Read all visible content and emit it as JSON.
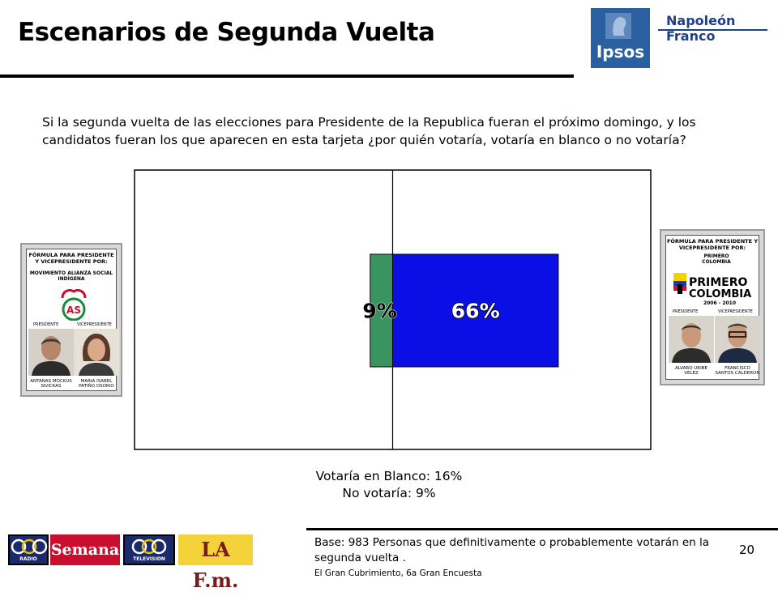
{
  "header": {
    "title": "Escenarios de Segunda Vuelta",
    "logo_ipsos": "Ipsos",
    "logo_company": "Napoleón Franco"
  },
  "question": "Si la segunda vuelta de las elecciones para Presidente de la Republica fueran el próximo domingo, y los candidatos fueran los que aparecen en esta tarjeta ¿por quién votaría, votaría en blanco o no votaría?",
  "chart_data": {
    "type": "bar",
    "orientation": "horizontal-diverging",
    "series": [
      {
        "label": "9%",
        "value": 9,
        "color": "#3a9460",
        "side": "left"
      },
      {
        "label": "66%",
        "value": 66,
        "color": "#0a0fe6",
        "side": "right"
      }
    ],
    "xlim": [
      -45,
      45
    ]
  },
  "ballot_left": {
    "header": "FÓRMULA PARA PRESIDENTE Y VICEPRESIDENTE POR:",
    "party": "MOVIMIENTO ALIANZA SOCIAL INDÍGENA",
    "role_president": "PRESIDENTE",
    "role_vice": "VICEPRESIDENTE",
    "name_president": "ANTANAS MOCKUS SIVICKAS",
    "name_vice": "MARIA ISABEL PATIÑO OSORIO"
  },
  "ballot_right": {
    "header": "FÓRMULA PARA PRESIDENTE Y VICEPRESIDENTE POR:",
    "party": "PRIMERO COLOMBIA",
    "logo_text": "PRIMERO COLOMBIA",
    "logo_years": "2006 - 2010",
    "role_president": "PRESIDENTE",
    "role_vice": "VICEPRESIDENTE",
    "name_president": "ALVARO URIBE VELEZ",
    "name_vice": "FRANCISCO SANTOS CALDERON"
  },
  "notes": {
    "blank": "Votaría en Blanco: 16%",
    "no_vote": "No votaría: 9%"
  },
  "footer": {
    "base": "Base: 983 Personas que definitivamente o probablemente votarán en la segunda vuelta .",
    "source": "El Gran Cubrimiento, 6a Gran Encuesta",
    "page_number": "20",
    "sponsors": [
      "RADIO",
      "Semana",
      "TELEVISION",
      "LA F.m."
    ]
  }
}
